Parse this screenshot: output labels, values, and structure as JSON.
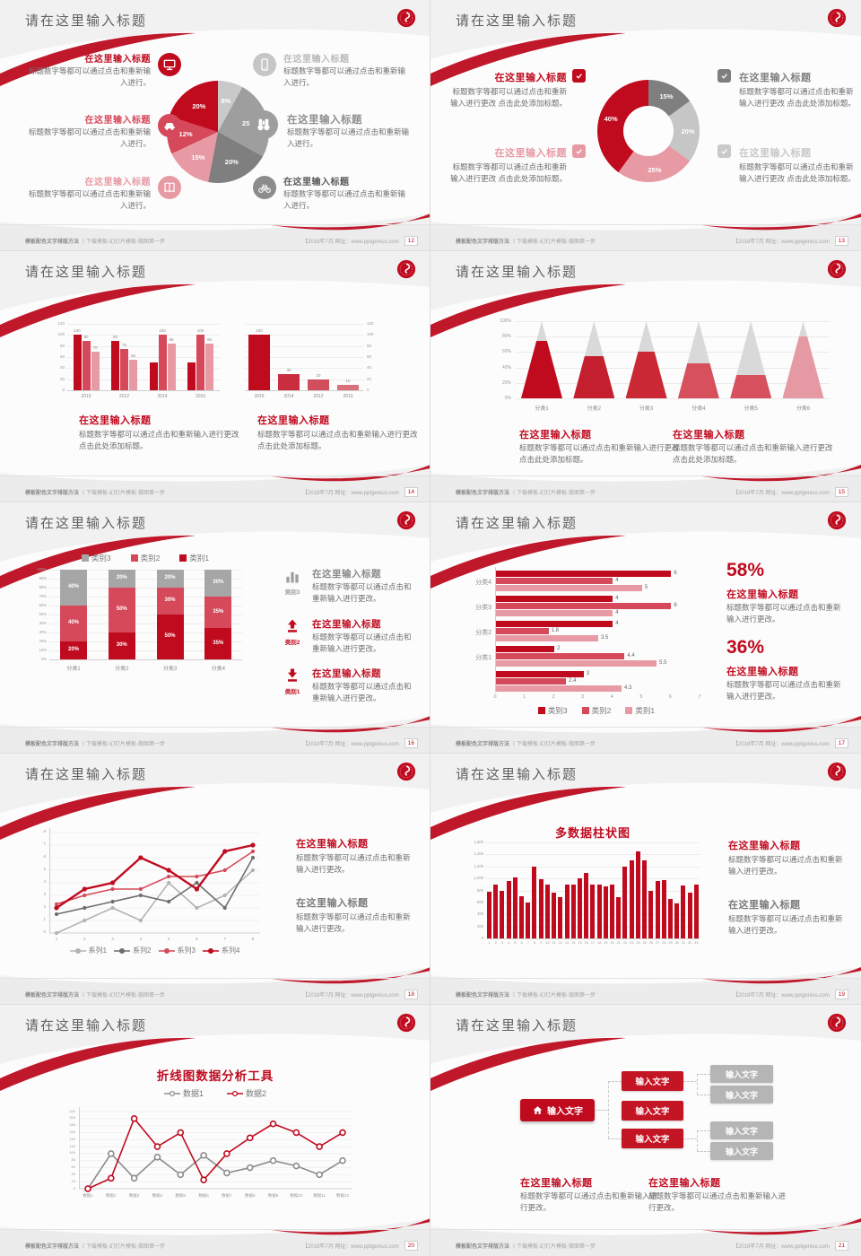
{
  "common": {
    "slide_title": "请在这里输入标题",
    "heading": "在这里输入标题",
    "body_short": "标题数字等都可以通过点击和重新输入进行。",
    "body_add": "标题数字等都可以通过点击和重新输入进行更改 点击此处添加标题。",
    "body_change": "标题数字等都可以通过点击和重新输入进行更改。",
    "footer_left_bold": "模板配色文字排版方法",
    "footer_left_rest": "丨下载模板-幻灯片模板-做图第一步",
    "footer_right": "【2018年7月 网址：www.pptgenius.com",
    "colors": {
      "red_dark": "#c00b1f",
      "red_mid": "#d5495a",
      "red_light": "#e89aa4",
      "gray_dark": "#7f7f7f",
      "gray_mid": "#a6a6a6",
      "gray_light": "#c9c9c9",
      "text_dark": "#595959",
      "text_body": "#6e6e6e"
    }
  },
  "slides": [
    {
      "page": "12",
      "layout": "pie-callouts",
      "chart": 0,
      "left_items": [
        {
          "icon": "monitor-icon",
          "color": "#c00b1f",
          "heading_color": "#c00b1f"
        },
        {
          "icon": "car-icon",
          "color": "#d5495a",
          "heading_color": "#d5495a"
        },
        {
          "icon": "book-icon",
          "color": "#e89aa4",
          "heading_color": "#e89aa4"
        }
      ],
      "right_items": [
        {
          "icon": "smartphone-icon",
          "color": "#c6c6c6",
          "heading_color": "#b9b9b9"
        },
        {
          "icon": "binoculars-icon",
          "color": "#9e9e9e",
          "heading_color": "#8f8f8f"
        },
        {
          "icon": "bicycle-icon",
          "color": "#8c8c8c",
          "heading_color": "#5a5a5a"
        }
      ],
      "body_key": "body_short"
    },
    {
      "page": "13",
      "layout": "donut-checklist",
      "chart": 1,
      "items": [
        {
          "side": "left",
          "row": 0,
          "color": "#c00b1f"
        },
        {
          "side": "left",
          "row": 1,
          "color": "#e89aa4"
        },
        {
          "side": "right",
          "row": 0,
          "color": "#7f7f7f"
        },
        {
          "side": "right",
          "row": 1,
          "color": "#c9c9c9"
        }
      ],
      "body_key": "body_add"
    },
    {
      "page": "14",
      "layout": "two-bars",
      "charts": [
        2,
        3
      ],
      "blocks": [
        {
          "heading_color": "#c00b1f"
        },
        {
          "heading_color": "#c00b1f"
        }
      ],
      "body_key": "body_add"
    },
    {
      "page": "15",
      "layout": "pyramid",
      "chart": 4,
      "blocks": [
        {
          "heading_color": "#c00b1f"
        },
        {
          "heading_color": "#c00b1f"
        }
      ],
      "body_key": "body_add"
    },
    {
      "page": "16",
      "layout": "stacked",
      "chart": 5,
      "items": [
        {
          "icon": "bar-chart-icon",
          "color": "#9e9e9e",
          "tag": "类别3",
          "heading_color": "#8a8a8a"
        },
        {
          "icon": "arrow-up-icon",
          "color": "#c00b1f",
          "tag": "类别2",
          "heading_color": "#c00b1f"
        },
        {
          "icon": "arrow-down-icon",
          "color": "#c00b1f",
          "tag": "类别1",
          "heading_color": "#c00b1f"
        }
      ],
      "body_key": "body_change"
    },
    {
      "page": "17",
      "layout": "hbar-stats",
      "chart": 6,
      "stats": [
        {
          "value": "58%"
        },
        {
          "value": "36%"
        }
      ],
      "body_key": "body_change"
    },
    {
      "page": "18",
      "layout": "line-blocks",
      "chart": 7,
      "blocks": [
        {
          "heading_color": "#c00b1f"
        },
        {
          "heading_color": "#7a7a7a"
        }
      ],
      "body_key": "body_change"
    },
    {
      "page": "19",
      "layout": "column-blocks",
      "chart": 8,
      "blocks": [
        {
          "heading_color": "#c00b1f"
        },
        {
          "heading_color": "#7a7a7a"
        }
      ],
      "body_key": "body_change"
    },
    {
      "page": "20",
      "layout": "line-only",
      "chart": 9
    },
    {
      "page": "21",
      "layout": "tree",
      "diagram": {
        "root_label": "输入文字",
        "root_icon": "home-icon",
        "mid_labels": [
          "输入文字",
          "输入文字",
          "输入文字"
        ],
        "leaf_labels": [
          "输入文字",
          "输入文字",
          "输入文字",
          "输入文字"
        ]
      },
      "blocks": [
        {
          "heading_color": "#c00b1f"
        },
        {
          "heading_color": "#c00b1f"
        }
      ],
      "body_key": "body_change"
    }
  ],
  "chart_data": [
    {
      "type": "pie",
      "slices": [
        {
          "label": "8%",
          "value": 8,
          "color": "#c9c9c9"
        },
        {
          "label": "25%",
          "value": 25,
          "color": "#9e9e9e"
        },
        {
          "label": "20%",
          "value": 20,
          "color": "#7f7f7f"
        },
        {
          "label": "15%",
          "value": 15,
          "color": "#e89aa4"
        },
        {
          "label": "12%",
          "value": 12,
          "color": "#d5495a"
        },
        {
          "label": "20%",
          "value": 20,
          "color": "#c00b1f"
        }
      ]
    },
    {
      "type": "pie",
      "donut": true,
      "slices": [
        {
          "label": "15%",
          "value": 15,
          "color": "#7f7f7f"
        },
        {
          "label": "20%",
          "value": 20,
          "color": "#c6c6c6"
        },
        {
          "label": "25%",
          "value": 25,
          "color": "#e89aa4"
        },
        {
          "label": "40%",
          "value": 40,
          "color": "#c00b1f"
        }
      ]
    },
    {
      "type": "bar",
      "categories": [
        "2010",
        "2012",
        "2014",
        "2016"
      ],
      "series": [
        {
          "name": "series1",
          "color": "#c00b1f",
          "values": [
            100,
            90,
            50,
            50
          ],
          "labels": [
            "100",
            "90",
            null,
            null
          ]
        },
        {
          "name": "series2",
          "color": "#d5495a",
          "values": [
            90,
            75,
            100,
            100
          ],
          "labels": [
            "90",
            "75",
            "100",
            "100"
          ]
        },
        {
          "name": "series3",
          "color": "#e89aa4",
          "values": [
            70,
            55,
            85,
            85
          ],
          "labels": [
            "70",
            "55",
            "85",
            "85"
          ]
        }
      ],
      "ylim": [
        0,
        120
      ],
      "ystep": 20
    },
    {
      "type": "bar",
      "categories": [
        "2016",
        "2014",
        "2012",
        "2010"
      ],
      "values": [
        100,
        30,
        20,
        10
      ],
      "labels": [
        "100",
        "30",
        "20",
        "10"
      ],
      "color": "#c00b1f",
      "ylim": [
        0,
        120
      ],
      "ystep": 20,
      "yaxis": "right"
    },
    {
      "type": "pyramid",
      "categories": [
        "分类1",
        "分类2",
        "分类3",
        "分类4",
        "分类5",
        "分类6"
      ],
      "fill_percent": [
        75,
        55,
        60,
        45,
        30,
        80
      ],
      "fill_colors": [
        "#c00b1f",
        "#c41f2e",
        "#cb2836",
        "#d6505e",
        "#d6505e",
        "#e59aa3"
      ],
      "top_color": "#d9d9d9",
      "ylim": [
        0,
        100
      ],
      "ystep": 20
    },
    {
      "type": "stacked-bar",
      "categories": [
        "分类1",
        "分类2",
        "分类3",
        "分类4"
      ],
      "series": [
        {
          "name": "类别1",
          "color": "#c00b1f",
          "values": [
            20,
            30,
            50,
            35
          ]
        },
        {
          "name": "类别2",
          "color": "#d5495a",
          "values": [
            40,
            50,
            30,
            35
          ]
        },
        {
          "name": "类别3",
          "color": "#a6a6a6",
          "values": [
            40,
            20,
            20,
            30
          ]
        }
      ],
      "legend": [
        {
          "name": "类别3",
          "color": "#a6a6a6"
        },
        {
          "name": "类别2",
          "color": "#d5495a"
        },
        {
          "name": "类别1",
          "color": "#c00b1f"
        }
      ],
      "ylim": [
        0,
        100
      ],
      "ystep": 10
    },
    {
      "type": "hbar",
      "group_labels": [
        "分类4",
        "分类3",
        "分类2",
        "分类1",
        ""
      ],
      "series": [
        {
          "name": "类别3",
          "color": "#c00b1f",
          "values": [
            6,
            4,
            4,
            2,
            3
          ]
        },
        {
          "name": "类别2",
          "color": "#d5495a",
          "values": [
            4,
            6,
            1.8,
            4.4,
            2.4
          ]
        },
        {
          "name": "类别1",
          "color": "#e89aa4",
          "values": [
            5,
            4,
            3.5,
            5.5,
            4.3
          ]
        }
      ],
      "xlim": [
        0,
        7
      ]
    },
    {
      "type": "line",
      "x": [
        "1",
        "2",
        "3",
        "4",
        "5",
        "6",
        "7",
        "8"
      ],
      "ylim": [
        0,
        8
      ],
      "ystep": 1,
      "series": [
        {
          "name": "系列1",
          "color": "#b3b3b3",
          "values": [
            0,
            1,
            2,
            1,
            4,
            2,
            3,
            5
          ]
        },
        {
          "name": "系列2",
          "color": "#6e6e6e",
          "values": [
            1.5,
            2,
            2.5,
            3,
            2.5,
            4,
            2,
            6
          ]
        },
        {
          "name": "系列3",
          "color": "#d5495a",
          "values": [
            2.3,
            3,
            3.5,
            3.5,
            4.5,
            4.5,
            5,
            6.5
          ]
        },
        {
          "name": "系列4",
          "color": "#c00b1f",
          "values": [
            2,
            3.5,
            4,
            6,
            5,
            3.5,
            6.5,
            7
          ],
          "bold": true
        }
      ]
    },
    {
      "type": "column",
      "title": "多数据柱状图",
      "color": "#c00b1f",
      "x_labels": [
        "1",
        "2",
        "3",
        "4",
        "5",
        "6",
        "7",
        "8",
        "9",
        "10",
        "11",
        "12",
        "13",
        "14",
        "15",
        "16",
        "17",
        "18",
        "19",
        "20",
        "21",
        "22",
        "23",
        "24",
        "25",
        "26",
        "27",
        "28",
        "29",
        "30",
        "31",
        "32",
        "33"
      ],
      "values": [
        780,
        900,
        800,
        950,
        1010,
        700,
        600,
        1190,
        980,
        890,
        760,
        690,
        890,
        900,
        1000,
        1090,
        900,
        890,
        870,
        900,
        690,
        1190,
        1300,
        1450,
        1300,
        800,
        960,
        970,
        660,
        580,
        880,
        760,
        900
      ],
      "ylim": [
        0,
        1600
      ],
      "ystep": 200
    },
    {
      "type": "line",
      "title": "折线图数据分析工具",
      "x_labels": [
        "数据1",
        "数据2",
        "数据3",
        "数据4",
        "数据5",
        "数据6",
        "数据7",
        "数据8",
        "数据9",
        "数据10",
        "数据11",
        "数据12"
      ],
      "ylim": [
        0,
        220
      ],
      "ystep": 20,
      "series": [
        {
          "name": "数据1",
          "color": "#8c8c8c",
          "marker": "open",
          "values": [
            0,
            100,
            30,
            90,
            40,
            95,
            45,
            60,
            80,
            65,
            40,
            80
          ]
        },
        {
          "name": "数据2",
          "color": "#c00b1f",
          "marker": "open",
          "values": [
            0,
            30,
            200,
            120,
            160,
            25,
            100,
            145,
            185,
            160,
            120,
            160
          ]
        }
      ]
    }
  ]
}
